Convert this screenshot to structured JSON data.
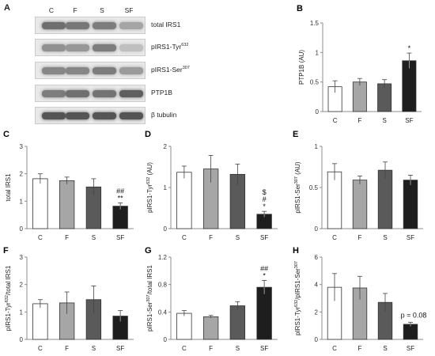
{
  "blot": {
    "panel": "A",
    "lanes": [
      "C",
      "F",
      "S",
      "SF"
    ],
    "rows": [
      {
        "name": "total IRS1",
        "sup": "",
        "darkness": [
          0.62,
          0.58,
          0.55,
          0.35
        ]
      },
      {
        "name": "pIRS1-Tyr",
        "sup": "632",
        "darkness": [
          0.45,
          0.42,
          0.55,
          0.22
        ]
      },
      {
        "name": "pIRS1-Ser",
        "sup": "307",
        "darkness": [
          0.5,
          0.5,
          0.55,
          0.4
        ]
      },
      {
        "name": "PTP1B",
        "sup": "",
        "darkness": [
          0.55,
          0.62,
          0.6,
          0.7
        ]
      },
      {
        "name": "β tubulin",
        "sup": "",
        "darkness": [
          0.75,
          0.75,
          0.75,
          0.75
        ]
      }
    ]
  },
  "colors": {
    "C": "#ffffff",
    "F": "#a6a6a6",
    "S": "#5a5a5a",
    "SF": "#1e1e1e",
    "axis": "#8c8c8c"
  },
  "chart_data": [
    {
      "panel": "B",
      "type": "bar",
      "categories": [
        "C",
        "F",
        "S",
        "SF"
      ],
      "values": [
        0.42,
        0.5,
        0.47,
        0.86
      ],
      "errors": [
        0.1,
        0.06,
        0.07,
        0.13
      ],
      "ylabel": "PTP1B (AU)",
      "ylabel_sup": "",
      "ylabel_suffix": "",
      "ylim": [
        0,
        1.5
      ],
      "yticks": [
        "0",
        "0.5",
        "1",
        "1.5"
      ],
      "ytick_values": [
        0,
        0.5,
        1,
        1.5
      ],
      "annotations": [
        {
          "category": "SF",
          "lines": [
            "*"
          ]
        }
      ],
      "note": ""
    },
    {
      "panel": "C",
      "type": "bar",
      "categories": [
        "C",
        "F",
        "S",
        "SF"
      ],
      "values": [
        1.82,
        1.75,
        1.52,
        0.82
      ],
      "errors": [
        0.18,
        0.13,
        0.3,
        0.12
      ],
      "ylabel": "total IRS1",
      "ylabel_sup": "",
      "ylabel_suffix": "",
      "ylim": [
        0,
        3
      ],
      "yticks": [
        "0",
        "1",
        "2",
        "3"
      ],
      "ytick_values": [
        0,
        1,
        2,
        3
      ],
      "annotations": [
        {
          "category": "SF",
          "lines": [
            "##",
            "**"
          ]
        }
      ],
      "note": ""
    },
    {
      "panel": "D",
      "type": "bar",
      "categories": [
        "C",
        "F",
        "S",
        "SF"
      ],
      "values": [
        1.37,
        1.45,
        1.32,
        0.35
      ],
      "errors": [
        0.15,
        0.33,
        0.25,
        0.07
      ],
      "ylabel": "pIRS1-Tyr",
      "ylabel_sup": "632",
      "ylabel_suffix": " (AU)",
      "ylim": [
        0,
        2
      ],
      "yticks": [
        "0",
        "1",
        "2"
      ],
      "ytick_values": [
        0,
        1,
        2
      ],
      "annotations": [
        {
          "category": "SF",
          "lines": [
            "$",
            "#",
            "*"
          ]
        }
      ],
      "note": ""
    },
    {
      "panel": "E",
      "type": "bar",
      "categories": [
        "C",
        "F",
        "S",
        "SF"
      ],
      "values": [
        0.69,
        0.59,
        0.71,
        0.59
      ],
      "errors": [
        0.1,
        0.05,
        0.1,
        0.06
      ],
      "ylabel": "pIRS1-Ser",
      "ylabel_sup": "307",
      "ylabel_suffix": " (AU)",
      "ylim": [
        0,
        1
      ],
      "yticks": [
        "0",
        "0.5",
        "1"
      ],
      "ytick_values": [
        0,
        0.5,
        1
      ],
      "annotations": [],
      "note": ""
    },
    {
      "panel": "F",
      "type": "bar",
      "categories": [
        "C",
        "F",
        "S",
        "SF"
      ],
      "values": [
        1.3,
        1.33,
        1.45,
        0.85
      ],
      "errors": [
        0.15,
        0.4,
        0.5,
        0.2
      ],
      "ylabel": "pIRS1-Tyr",
      "ylabel_sup": "632",
      "ylabel_suffix": "/total IRS1",
      "ylim": [
        0,
        3
      ],
      "yticks": [
        "0",
        "1",
        "2",
        "3"
      ],
      "ytick_values": [
        0,
        1,
        2,
        3
      ],
      "annotations": [],
      "note": ""
    },
    {
      "panel": "G",
      "type": "bar",
      "categories": [
        "C",
        "F",
        "S",
        "SF"
      ],
      "values": [
        0.38,
        0.33,
        0.49,
        0.76
      ],
      "errors": [
        0.04,
        0.02,
        0.06,
        0.1
      ],
      "ylabel": "pIRS1-Ser",
      "ylabel_sup": "307",
      "ylabel_suffix": "/total IRS1",
      "ylim": [
        0,
        1.2
      ],
      "yticks": [
        "0",
        "0.4",
        "0.8",
        "1.2"
      ],
      "ytick_values": [
        0,
        0.4,
        0.8,
        1.2
      ],
      "annotations": [
        {
          "category": "SF",
          "lines": [
            "##",
            "*"
          ]
        }
      ],
      "note": ""
    },
    {
      "panel": "H",
      "type": "bar",
      "categories": [
        "C",
        "F",
        "S",
        "SF"
      ],
      "values": [
        3.8,
        3.75,
        2.7,
        1.1
      ],
      "errors": [
        1.0,
        0.85,
        0.65,
        0.15
      ],
      "ylabel": "pIRS1-Tyr",
      "ylabel_sup": "632",
      "ylabel_suffix": "/pIRS1-Ser",
      "ylabel_sup2": "307",
      "ylim": [
        0,
        6
      ],
      "yticks": [
        "0",
        "2",
        "4",
        "6"
      ],
      "ytick_values": [
        0,
        2,
        4,
        6
      ],
      "annotations": [],
      "note": "p = 0.08"
    }
  ]
}
